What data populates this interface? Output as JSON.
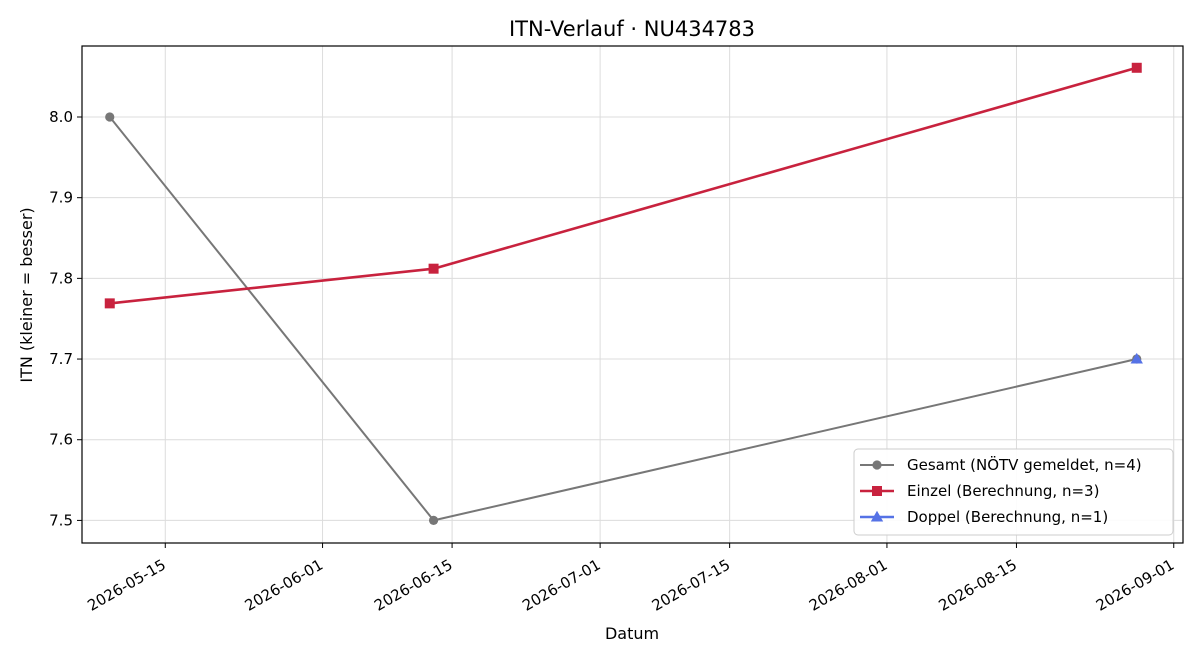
{
  "chart_data": {
    "type": "line",
    "title": "ITN-Verlauf · NU434783",
    "xlabel": "Datum",
    "ylabel": "ITN  (kleiner = besser)",
    "x_type": "date",
    "xlim": [
      "2026-05-06",
      "2026-09-02"
    ],
    "ylim": [
      7.472,
      8.088
    ],
    "x_ticks": [
      "2026-05-15",
      "2026-06-01",
      "2026-06-15",
      "2026-07-01",
      "2026-07-15",
      "2026-08-01",
      "2026-08-15",
      "2026-09-01"
    ],
    "y_ticks": [
      "7.5",
      "7.6",
      "7.7",
      "7.8",
      "7.9",
      "8.0"
    ],
    "grid": true,
    "legend_position": "lower-right",
    "series": [
      {
        "name": "Gesamt (NÖTV gemeldet, n=4)",
        "color": "#777777",
        "marker": "circle",
        "points": [
          {
            "x": "2026-05-09",
            "y": 8.0
          },
          {
            "x": "2026-06-13",
            "y": 7.5
          },
          {
            "x": "2026-08-28",
            "y": 7.7
          }
        ]
      },
      {
        "name": "Einzel (Berechnung, n=3)",
        "color": "#c8223e",
        "marker": "square",
        "points": [
          {
            "x": "2026-05-09",
            "y": 7.769
          },
          {
            "x": "2026-06-13",
            "y": 7.812
          },
          {
            "x": "2026-08-28",
            "y": 8.061
          }
        ]
      },
      {
        "name": "Doppel (Berechnung, n=1)",
        "color": "#5572e6",
        "marker": "triangle",
        "points": [
          {
            "x": "2026-08-28",
            "y": 7.7
          }
        ]
      }
    ]
  }
}
